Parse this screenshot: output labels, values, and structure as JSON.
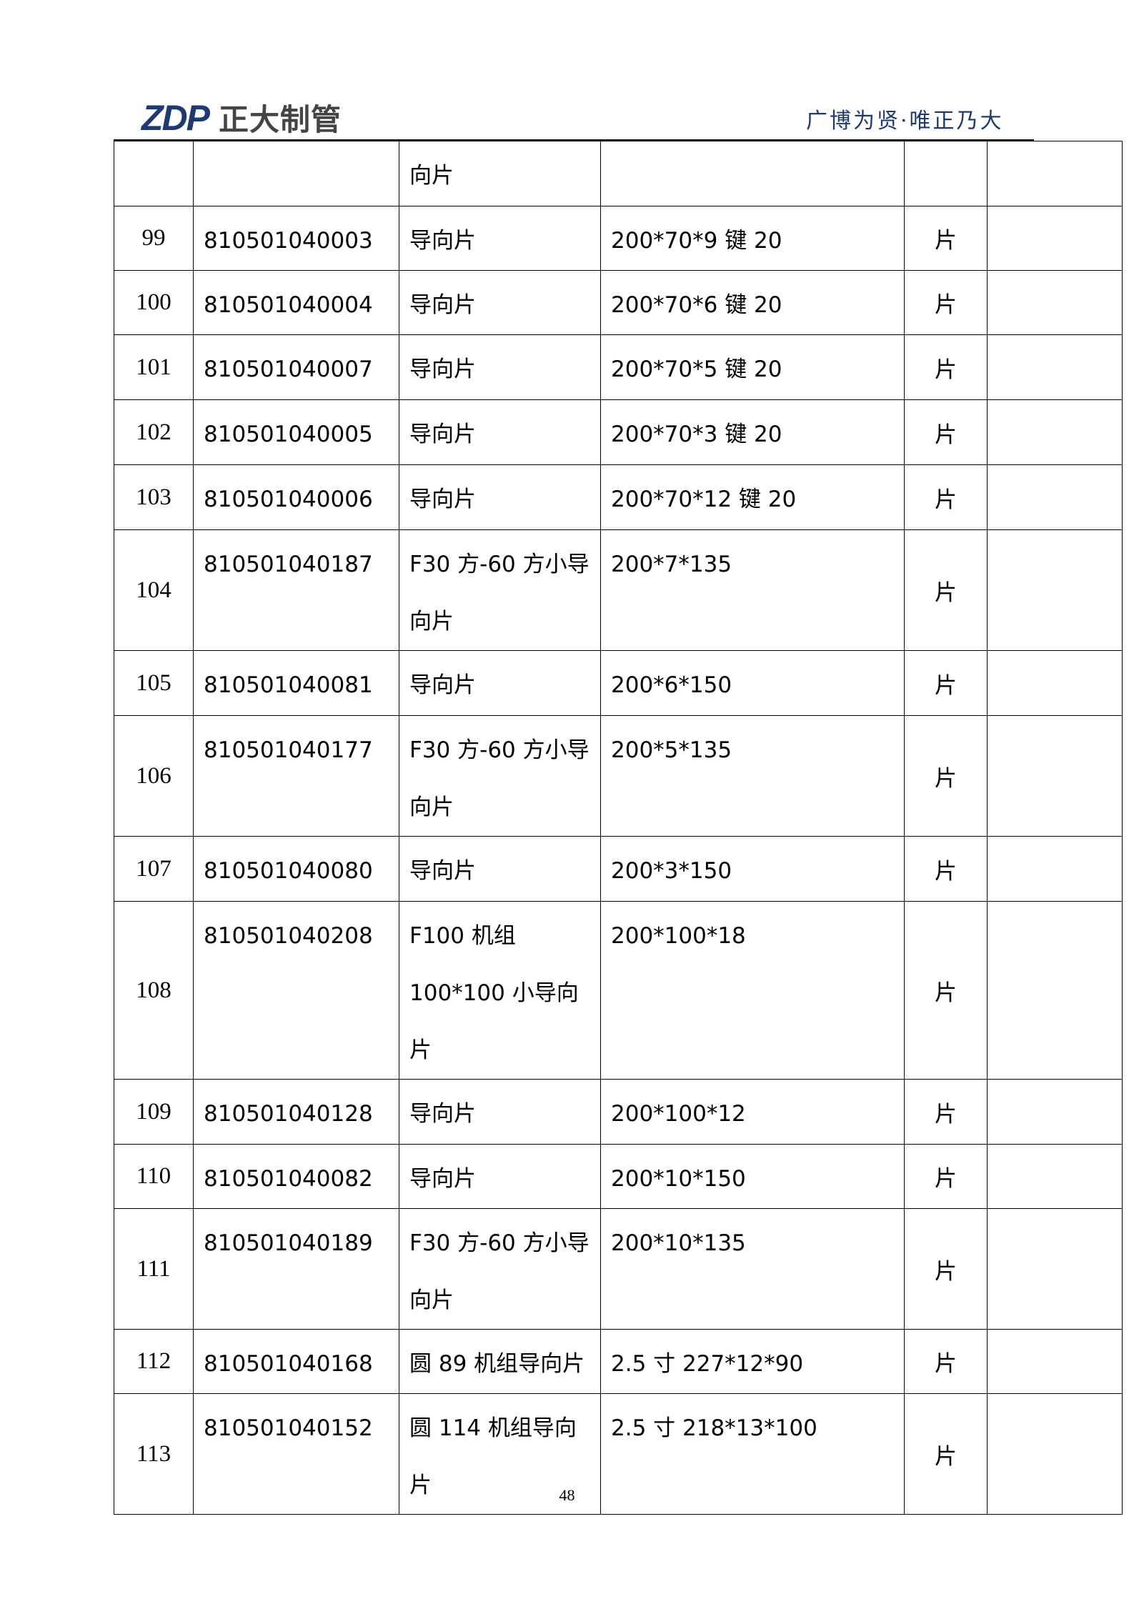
{
  "header": {
    "logo_mark": "ZDP",
    "logo_text": "正大制管",
    "motto": "广博为贤·唯正乃大"
  },
  "table": {
    "rows": [
      {
        "seq": "",
        "code": "",
        "name": "向片",
        "spec": "",
        "unit": "",
        "note": ""
      },
      {
        "seq": "99",
        "code": "810501040003",
        "name": "导向片",
        "spec": "200*70*9 键 20",
        "unit": "片",
        "note": ""
      },
      {
        "seq": "100",
        "code": "810501040004",
        "name": "导向片",
        "spec": "200*70*6 键 20",
        "unit": "片",
        "note": ""
      },
      {
        "seq": "101",
        "code": "810501040007",
        "name": "导向片",
        "spec": "200*70*5 键 20",
        "unit": "片",
        "note": ""
      },
      {
        "seq": "102",
        "code": "810501040005",
        "name": "导向片",
        "spec": "200*70*3 键 20",
        "unit": "片",
        "note": ""
      },
      {
        "seq": "103",
        "code": "810501040006",
        "name": "导向片",
        "spec": "200*70*12 键 20",
        "unit": "片",
        "note": ""
      },
      {
        "seq": "104",
        "code": "810501040187",
        "name": "F30 方-60 方小导向片",
        "spec": "200*7*135",
        "unit": "片",
        "note": ""
      },
      {
        "seq": "105",
        "code": "810501040081",
        "name": "导向片",
        "spec": "200*6*150",
        "unit": "片",
        "note": ""
      },
      {
        "seq": "106",
        "code": "810501040177",
        "name": "F30 方-60 方小导向片",
        "spec": "200*5*135",
        "unit": "片",
        "note": ""
      },
      {
        "seq": "107",
        "code": "810501040080",
        "name": "导向片",
        "spec": "200*3*150",
        "unit": "片",
        "note": ""
      },
      {
        "seq": "108",
        "code": "810501040208",
        "name": "F100 机组 100*100 小导向片",
        "spec": "200*100*18",
        "unit": "片",
        "note": ""
      },
      {
        "seq": "109",
        "code": "810501040128",
        "name": "导向片",
        "spec": "200*100*12",
        "unit": "片",
        "note": ""
      },
      {
        "seq": "110",
        "code": "810501040082",
        "name": "导向片",
        "spec": "200*10*150",
        "unit": "片",
        "note": ""
      },
      {
        "seq": "111",
        "code": "810501040189",
        "name": "F30 方-60 方小导向片",
        "spec": "200*10*135",
        "unit": "片",
        "note": ""
      },
      {
        "seq": "112",
        "code": "810501040168",
        "name": "圆 89 机组导向片",
        "spec": "2.5 寸 227*12*90",
        "unit": "片",
        "note": ""
      },
      {
        "seq": "113",
        "code": "810501040152",
        "name": "圆 114 机组导向片",
        "spec": "2.5 寸 218*13*100",
        "unit": "片",
        "note": ""
      }
    ]
  },
  "footer": {
    "page_number": "48"
  }
}
